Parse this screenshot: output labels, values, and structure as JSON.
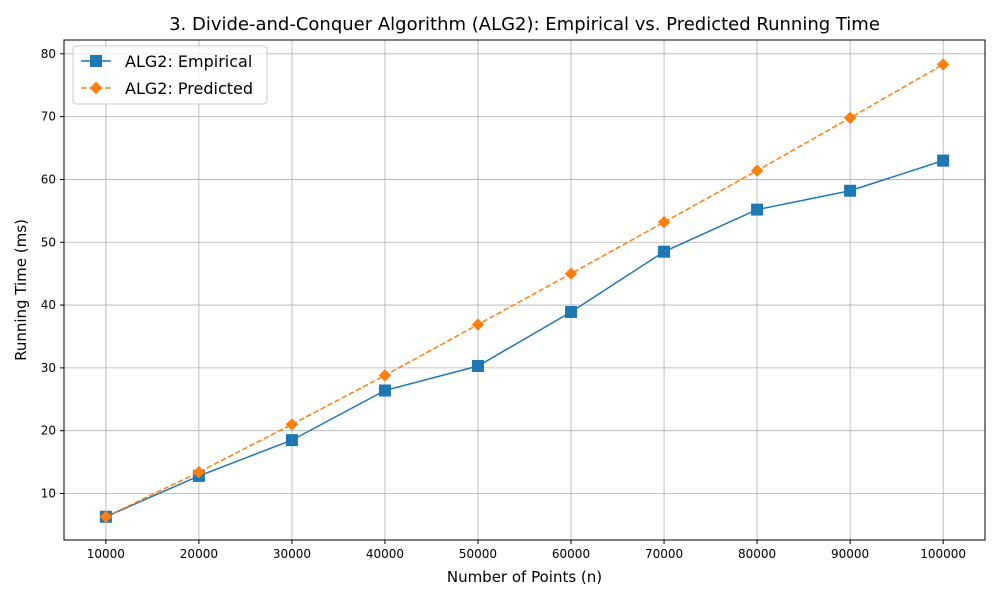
{
  "chart_data": {
    "type": "line",
    "title": "3. Divide-and-Conquer Algorithm (ALG2): Empirical vs. Predicted Running Time",
    "xlabel": "Number of Points (n)",
    "ylabel": "Running Time (ms)",
    "x": [
      10000,
      20000,
      30000,
      40000,
      50000,
      60000,
      70000,
      80000,
      90000,
      100000
    ],
    "x_tick_labels": [
      "10000",
      "20000",
      "30000",
      "40000",
      "50000",
      "60000",
      "70000",
      "80000",
      "90000",
      "100000"
    ],
    "y_ticks": [
      10,
      20,
      30,
      40,
      50,
      60,
      70,
      80
    ],
    "y_tick_labels": [
      "10",
      "20",
      "30",
      "40",
      "50",
      "60",
      "70",
      "80"
    ],
    "xlim": [
      5500,
      104500
    ],
    "ylim": [
      2.6,
      82.2
    ],
    "grid": true,
    "legend_position": "top-left",
    "series": [
      {
        "name": "ALG2: Empirical",
        "color": "#1f77b4",
        "marker": "square",
        "line_style": "solid",
        "values": [
          6.3,
          12.8,
          18.5,
          26.4,
          30.3,
          38.9,
          48.5,
          55.2,
          58.2,
          63.0
        ]
      },
      {
        "name": "ALG2: Predicted",
        "color": "#ff7f0e",
        "marker": "diamond",
        "line_style": "dashed",
        "values": [
          6.3,
          13.4,
          21.0,
          28.8,
          36.9,
          45.0,
          53.2,
          61.4,
          69.8,
          78.3
        ]
      }
    ]
  }
}
